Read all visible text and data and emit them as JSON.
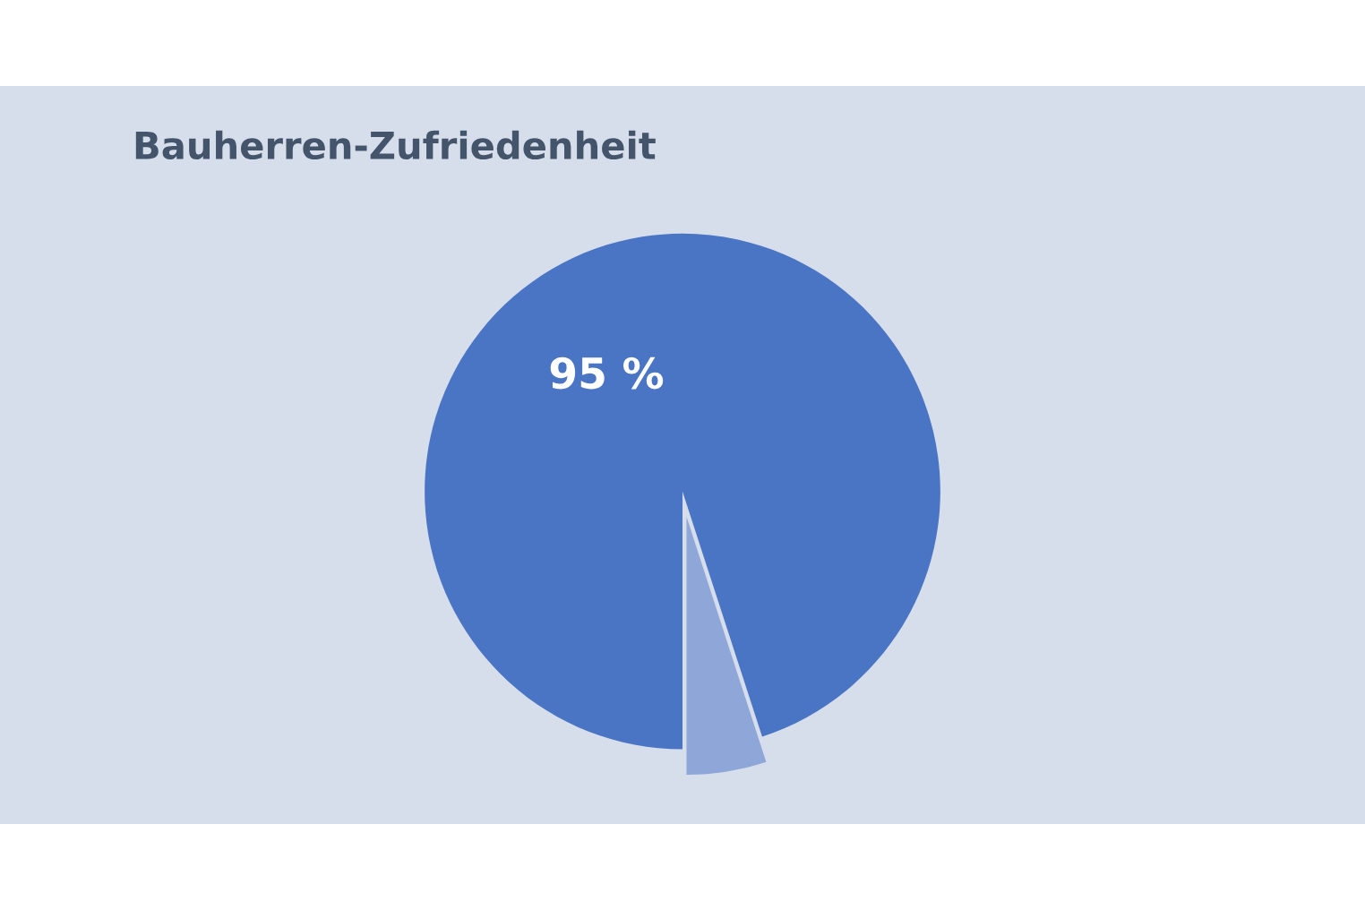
{
  "chart_data": {
    "type": "pie",
    "title": "Bauherren-Zufriedenheit",
    "categories": [
      null,
      null
    ],
    "values": [
      95,
      5
    ],
    "colors": [
      "#4a74c4",
      "#8ea6d8"
    ],
    "value_labels": [
      "95 %",
      null
    ]
  }
}
